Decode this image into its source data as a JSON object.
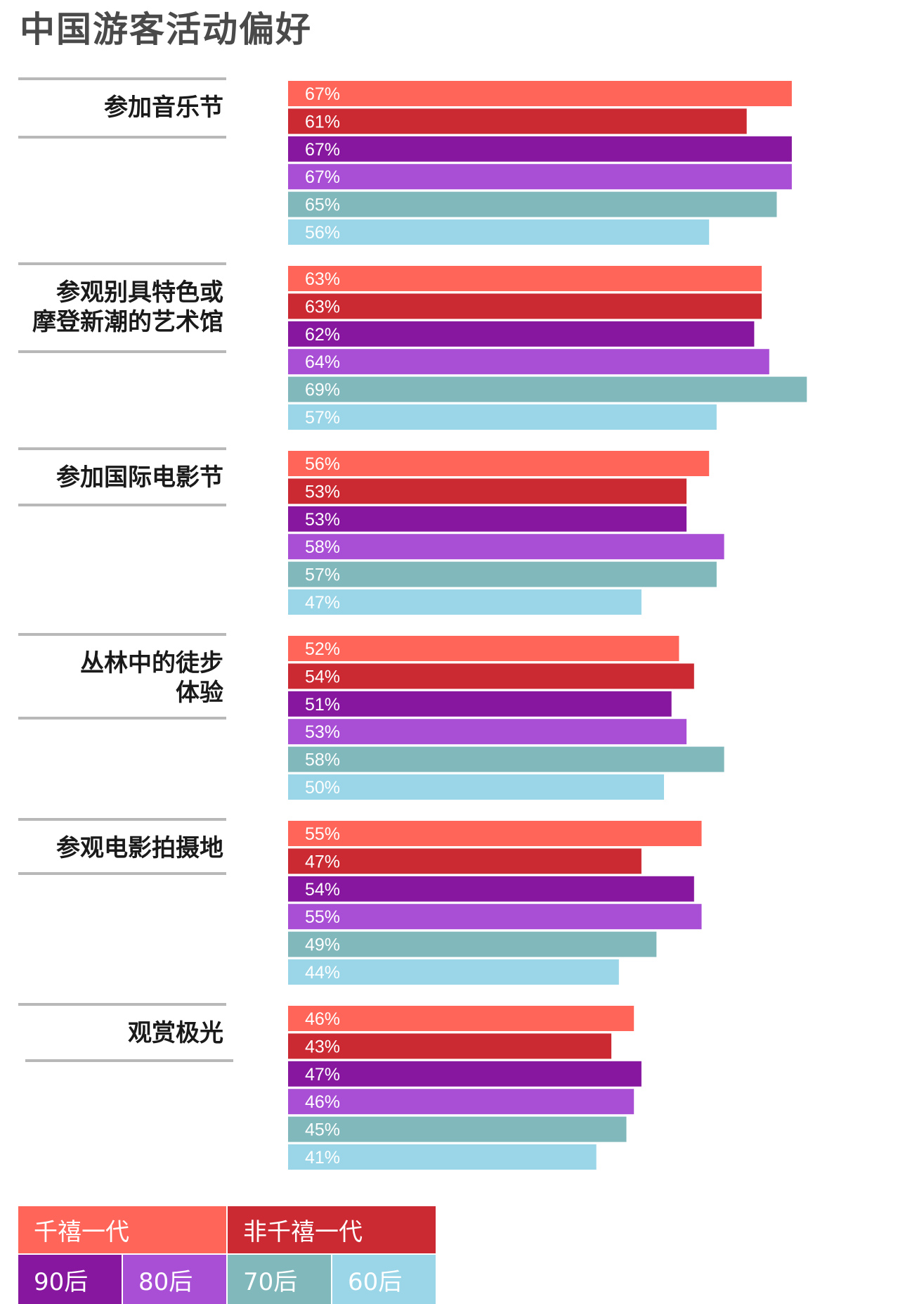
{
  "title": "中国游客活动偏好",
  "chart_data": {
    "type": "bar",
    "orientation": "horizontal",
    "title": "中国游客活动偏好",
    "categories": [
      "参加音乐节",
      "参观别具特色或\n摩登新潮的艺术馆",
      "参加国际电影节",
      "丛林中的徒步\n体验",
      "参观电影拍摄地",
      "观赏极光"
    ],
    "bar_rows": [
      {
        "color": "#ff6558"
      },
      {
        "color": "#cc2a33"
      },
      {
        "color": "#87179f"
      },
      {
        "color": "#a94fd6"
      },
      {
        "color": "#80b8bc"
      },
      {
        "color": "#9ad6e8"
      }
    ],
    "values": [
      [
        67,
        61,
        67,
        67,
        65,
        56
      ],
      [
        63,
        63,
        62,
        64,
        69,
        57
      ],
      [
        56,
        53,
        53,
        58,
        57,
        47
      ],
      [
        52,
        54,
        51,
        53,
        58,
        50
      ],
      [
        55,
        47,
        54,
        55,
        49,
        44
      ],
      [
        46,
        43,
        47,
        46,
        45,
        41
      ]
    ],
    "value_suffix": "%",
    "xlim": [
      0,
      100
    ],
    "grid": false
  },
  "legend": {
    "groups": [
      {
        "label": "千禧一代",
        "color": "#ff6558"
      },
      {
        "label": "非千禧一代",
        "color": "#cc2a33"
      }
    ],
    "items": [
      {
        "label": "90后",
        "color": "#87179f"
      },
      {
        "label": "80后",
        "color": "#a94fd6"
      },
      {
        "label": "70后",
        "color": "#80b8bc"
      },
      {
        "label": "60后",
        "color": "#9ad6e8"
      }
    ]
  }
}
